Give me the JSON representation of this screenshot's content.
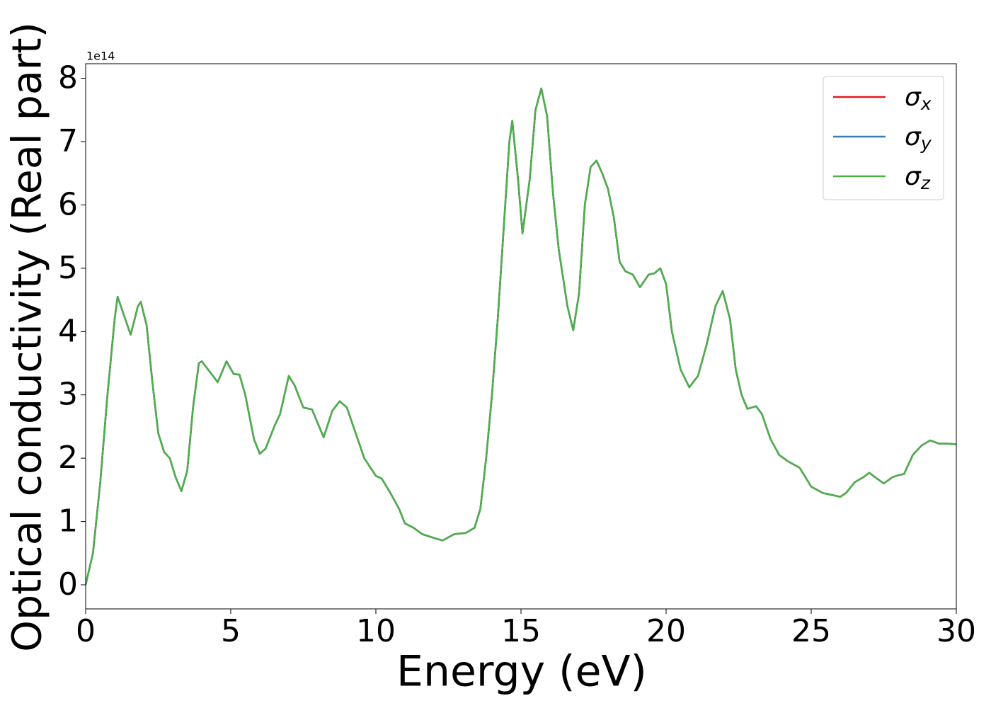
{
  "chart_data": {
    "type": "line",
    "x_label": "Energy (eV)",
    "y_label": "Optical conductivity (Real part)",
    "y_offset_label": "1e14",
    "x": [
      0,
      0.25,
      0.5,
      0.75,
      1.0,
      1.1,
      1.4,
      1.55,
      1.8,
      1.9,
      2.1,
      2.3,
      2.5,
      2.7,
      2.9,
      3.1,
      3.3,
      3.5,
      3.7,
      3.9,
      4.0,
      4.3,
      4.55,
      4.85,
      5.1,
      5.3,
      5.5,
      5.8,
      6.0,
      6.2,
      6.5,
      6.7,
      7.0,
      7.2,
      7.5,
      7.8,
      8.0,
      8.2,
      8.5,
      8.75,
      9.0,
      9.3,
      9.6,
      10.0,
      10.2,
      10.5,
      10.8,
      11.0,
      11.3,
      11.6,
      12.0,
      12.3,
      12.7,
      13.1,
      13.4,
      13.6,
      13.8,
      14.0,
      14.2,
      14.4,
      14.6,
      14.7,
      14.9,
      15.05,
      15.3,
      15.5,
      15.7,
      15.9,
      16.1,
      16.3,
      16.6,
      16.8,
      17.0,
      17.2,
      17.4,
      17.6,
      17.8,
      18.0,
      18.2,
      18.4,
      18.6,
      18.85,
      19.1,
      19.4,
      19.6,
      19.8,
      20.0,
      20.2,
      20.5,
      20.8,
      21.1,
      21.4,
      21.7,
      21.95,
      22.2,
      22.4,
      22.6,
      22.8,
      23.1,
      23.3,
      23.6,
      23.9,
      24.2,
      24.6,
      24.8,
      25.0,
      25.4,
      25.7,
      26.0,
      26.2,
      26.5,
      26.8,
      27.0,
      27.2,
      27.5,
      27.8,
      28.0,
      28.2,
      28.5,
      28.8,
      29.1,
      29.4,
      29.7,
      30.0
    ],
    "series": [
      {
        "name": "σx",
        "color": "#e41a1c",
        "values": [
          0,
          0.5,
          1.6,
          3.0,
          4.2,
          4.55,
          4.15,
          3.95,
          4.4,
          4.47,
          4.1,
          3.2,
          2.4,
          2.1,
          2.0,
          1.7,
          1.48,
          1.8,
          2.8,
          3.5,
          3.53,
          3.35,
          3.2,
          3.53,
          3.33,
          3.32,
          3.0,
          2.3,
          2.07,
          2.15,
          2.5,
          2.7,
          3.3,
          3.15,
          2.8,
          2.77,
          2.55,
          2.33,
          2.75,
          2.9,
          2.8,
          2.4,
          2.0,
          1.72,
          1.68,
          1.45,
          1.2,
          0.97,
          0.9,
          0.8,
          0.74,
          0.7,
          0.8,
          0.82,
          0.9,
          1.2,
          2.0,
          3.0,
          4.2,
          5.6,
          7.0,
          7.33,
          6.4,
          5.55,
          6.4,
          7.5,
          7.84,
          7.4,
          6.2,
          5.3,
          4.4,
          4.02,
          4.6,
          6.0,
          6.6,
          6.7,
          6.5,
          6.25,
          5.8,
          5.1,
          4.95,
          4.9,
          4.7,
          4.9,
          4.92,
          5.0,
          4.75,
          4.0,
          3.4,
          3.12,
          3.3,
          3.8,
          4.4,
          4.64,
          4.2,
          3.4,
          3.0,
          2.78,
          2.82,
          2.7,
          2.3,
          2.05,
          1.95,
          1.85,
          1.7,
          1.55,
          1.45,
          1.42,
          1.39,
          1.45,
          1.62,
          1.7,
          1.77,
          1.7,
          1.6,
          1.7,
          1.73,
          1.75,
          2.05,
          2.2,
          2.28,
          2.23,
          2.23,
          2.22
        ]
      },
      {
        "name": "σy",
        "color": "#377eb8",
        "values": [
          0,
          0.5,
          1.6,
          3.0,
          4.2,
          4.55,
          4.15,
          3.95,
          4.4,
          4.47,
          4.1,
          3.2,
          2.4,
          2.1,
          2.0,
          1.7,
          1.48,
          1.8,
          2.8,
          3.5,
          3.53,
          3.35,
          3.2,
          3.53,
          3.33,
          3.32,
          3.0,
          2.3,
          2.07,
          2.15,
          2.5,
          2.7,
          3.3,
          3.15,
          2.8,
          2.77,
          2.55,
          2.33,
          2.75,
          2.9,
          2.8,
          2.4,
          2.0,
          1.72,
          1.68,
          1.45,
          1.2,
          0.97,
          0.9,
          0.8,
          0.74,
          0.7,
          0.8,
          0.82,
          0.9,
          1.2,
          2.0,
          3.0,
          4.2,
          5.6,
          7.0,
          7.33,
          6.4,
          5.55,
          6.4,
          7.5,
          7.84,
          7.4,
          6.2,
          5.3,
          4.4,
          4.02,
          4.6,
          6.0,
          6.6,
          6.7,
          6.5,
          6.25,
          5.8,
          5.1,
          4.95,
          4.9,
          4.7,
          4.9,
          4.92,
          5.0,
          4.75,
          4.0,
          3.4,
          3.12,
          3.3,
          3.8,
          4.4,
          4.64,
          4.2,
          3.4,
          3.0,
          2.78,
          2.82,
          2.7,
          2.3,
          2.05,
          1.95,
          1.85,
          1.7,
          1.55,
          1.45,
          1.42,
          1.39,
          1.45,
          1.62,
          1.7,
          1.77,
          1.7,
          1.6,
          1.7,
          1.73,
          1.75,
          2.05,
          2.2,
          2.28,
          2.23,
          2.23,
          2.22
        ]
      },
      {
        "name": "σz",
        "color": "#4daf4a",
        "values": [
          0,
          0.5,
          1.6,
          3.0,
          4.2,
          4.55,
          4.15,
          3.95,
          4.4,
          4.47,
          4.1,
          3.2,
          2.4,
          2.1,
          2.0,
          1.7,
          1.48,
          1.8,
          2.8,
          3.5,
          3.53,
          3.35,
          3.2,
          3.53,
          3.33,
          3.32,
          3.0,
          2.3,
          2.07,
          2.15,
          2.5,
          2.7,
          3.3,
          3.15,
          2.8,
          2.77,
          2.55,
          2.33,
          2.75,
          2.9,
          2.8,
          2.4,
          2.0,
          1.72,
          1.68,
          1.45,
          1.2,
          0.97,
          0.9,
          0.8,
          0.74,
          0.7,
          0.8,
          0.82,
          0.9,
          1.2,
          2.0,
          3.0,
          4.2,
          5.6,
          7.0,
          7.33,
          6.4,
          5.55,
          6.4,
          7.5,
          7.84,
          7.4,
          6.2,
          5.3,
          4.4,
          4.02,
          4.6,
          6.0,
          6.6,
          6.7,
          6.5,
          6.25,
          5.8,
          5.1,
          4.95,
          4.9,
          4.7,
          4.9,
          4.92,
          5.0,
          4.75,
          4.0,
          3.4,
          3.12,
          3.3,
          3.8,
          4.4,
          4.64,
          4.2,
          3.4,
          3.0,
          2.78,
          2.82,
          2.7,
          2.3,
          2.05,
          1.95,
          1.85,
          1.7,
          1.55,
          1.45,
          1.42,
          1.39,
          1.45,
          1.62,
          1.7,
          1.77,
          1.7,
          1.6,
          1.7,
          1.73,
          1.75,
          2.05,
          2.2,
          2.28,
          2.23,
          2.23,
          2.22
        ]
      }
    ],
    "xlim": [
      0,
      30
    ],
    "xticks": [
      0,
      5,
      10,
      15,
      20,
      25,
      30
    ],
    "ylim": [
      -0.38,
      8.23
    ],
    "yticks": [
      0,
      1,
      2,
      3,
      4,
      5,
      6,
      7,
      8
    ],
    "grid": false,
    "legend": "upper right"
  }
}
